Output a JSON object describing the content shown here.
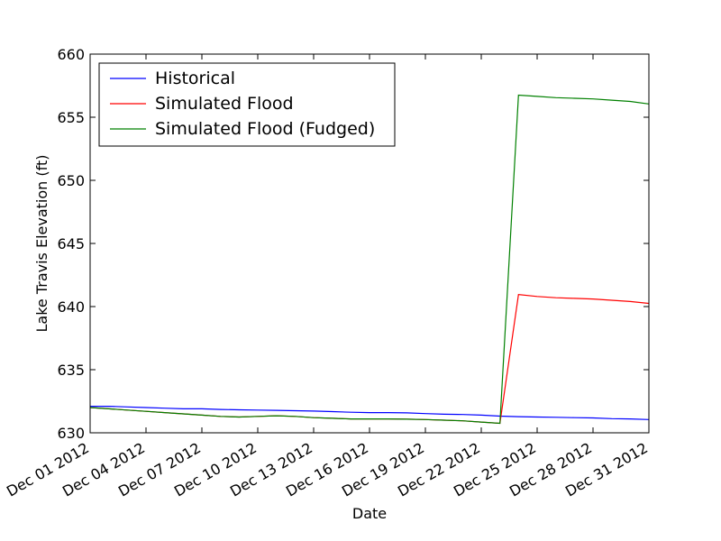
{
  "chart_data": {
    "type": "line",
    "xlabel": "Date",
    "ylabel": "Lake Travis Elevation (ft)",
    "ylim": [
      630,
      660
    ],
    "xlim": [
      "2012-12-01",
      "2012-12-31"
    ],
    "grid": false,
    "legend_placement": "top-left",
    "yticks": [
      630,
      635,
      640,
      645,
      650,
      655,
      660
    ],
    "xtick_labels": [
      "Dec 01 2012",
      "Dec 04 2012",
      "Dec 07 2012",
      "Dec 10 2012",
      "Dec 13 2012",
      "Dec 16 2012",
      "Dec 19 2012",
      "Dec 22 2012",
      "Dec 25 2012",
      "Dec 28 2012",
      "Dec 31 2012"
    ],
    "xtick_dates": [
      "2012-12-01",
      "2012-12-04",
      "2012-12-07",
      "2012-12-10",
      "2012-12-13",
      "2012-12-16",
      "2012-12-19",
      "2012-12-22",
      "2012-12-25",
      "2012-12-28",
      "2012-12-31"
    ],
    "x": [
      "2012-12-01",
      "2012-12-02",
      "2012-12-03",
      "2012-12-04",
      "2012-12-05",
      "2012-12-06",
      "2012-12-07",
      "2012-12-08",
      "2012-12-09",
      "2012-12-10",
      "2012-12-11",
      "2012-12-12",
      "2012-12-13",
      "2012-12-14",
      "2012-12-15",
      "2012-12-16",
      "2012-12-17",
      "2012-12-18",
      "2012-12-19",
      "2012-12-20",
      "2012-12-21",
      "2012-12-22",
      "2012-12-23",
      "2012-12-24",
      "2012-12-25",
      "2012-12-26",
      "2012-12-27",
      "2012-12-28",
      "2012-12-29",
      "2012-12-30",
      "2012-12-31"
    ],
    "series": [
      {
        "name": "Historical",
        "color": "#0000ff",
        "values": [
          632.1,
          632.1,
          632.05,
          632.0,
          631.95,
          631.9,
          631.9,
          631.85,
          631.82,
          631.8,
          631.78,
          631.75,
          631.72,
          631.68,
          631.63,
          631.6,
          631.6,
          631.58,
          631.52,
          631.47,
          631.45,
          631.4,
          631.32,
          631.28,
          631.25,
          631.23,
          631.2,
          631.18,
          631.12,
          631.1,
          631.05
        ]
      },
      {
        "name": "Simulated Flood",
        "color": "#ff0000",
        "values": [
          632.0,
          631.9,
          631.8,
          631.7,
          631.6,
          631.5,
          631.4,
          631.3,
          631.25,
          631.3,
          631.35,
          631.3,
          631.2,
          631.15,
          631.1,
          631.1,
          631.1,
          631.08,
          631.05,
          631.0,
          630.95,
          630.85,
          630.75,
          640.95,
          640.8,
          640.7,
          640.65,
          640.6,
          640.5,
          640.4,
          640.25
        ]
      },
      {
        "name": "Simulated Flood (Fudged)",
        "color": "#008000",
        "values": [
          632.0,
          631.9,
          631.8,
          631.7,
          631.6,
          631.5,
          631.4,
          631.3,
          631.25,
          631.3,
          631.35,
          631.3,
          631.2,
          631.15,
          631.1,
          631.1,
          631.1,
          631.08,
          631.05,
          631.0,
          630.95,
          630.85,
          630.75,
          656.75,
          656.65,
          656.55,
          656.5,
          656.45,
          656.35,
          656.25,
          656.05
        ]
      }
    ]
  }
}
